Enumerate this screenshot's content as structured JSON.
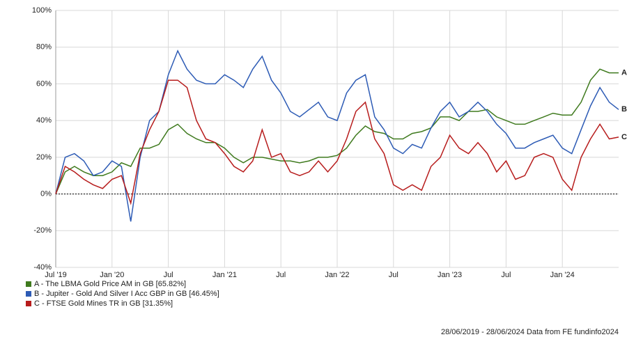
{
  "chart_data": {
    "type": "line",
    "x": [
      "2019-07",
      "2019-08",
      "2019-09",
      "2019-10",
      "2019-11",
      "2019-12",
      "2020-01",
      "2020-02",
      "2020-03",
      "2020-04",
      "2020-05",
      "2020-06",
      "2020-07",
      "2020-08",
      "2020-09",
      "2020-10",
      "2020-11",
      "2020-12",
      "2021-01",
      "2021-02",
      "2021-03",
      "2021-04",
      "2021-05",
      "2021-06",
      "2021-07",
      "2021-08",
      "2021-09",
      "2021-10",
      "2021-11",
      "2021-12",
      "2022-01",
      "2022-02",
      "2022-03",
      "2022-04",
      "2022-05",
      "2022-06",
      "2022-07",
      "2022-08",
      "2022-09",
      "2022-10",
      "2022-11",
      "2022-12",
      "2023-01",
      "2023-02",
      "2023-03",
      "2023-04",
      "2023-05",
      "2023-06",
      "2023-07",
      "2023-08",
      "2023-09",
      "2023-10",
      "2023-11",
      "2023-12",
      "2024-01",
      "2024-02",
      "2024-03",
      "2024-04",
      "2024-05",
      "2024-06",
      "2024-07"
    ],
    "series": [
      {
        "name": "A - The LBMA Gold Price AM in GB [65.82%]",
        "end_label": "A",
        "color": "#3f7a1e",
        "values": [
          0,
          12,
          15,
          12,
          10,
          10,
          12,
          17,
          15,
          25,
          25,
          27,
          35,
          38,
          33,
          30,
          28,
          28,
          25,
          20,
          17,
          20,
          20,
          19,
          18,
          18,
          17,
          18,
          20,
          20,
          21,
          25,
          32,
          37,
          34,
          33,
          30,
          30,
          33,
          34,
          36,
          42,
          42,
          40,
          45,
          45,
          46,
          42,
          40,
          38,
          38,
          40,
          42,
          44,
          43,
          43,
          50,
          62,
          68,
          66,
          66
        ]
      },
      {
        "name": "B - Jupiter - Gold And Silver I Acc GBP in GB [46.45%]",
        "end_label": "B",
        "color": "#2d5bb5",
        "values": [
          0,
          20,
          22,
          18,
          10,
          12,
          18,
          15,
          -15,
          20,
          40,
          45,
          65,
          78,
          68,
          62,
          60,
          60,
          65,
          62,
          58,
          68,
          75,
          62,
          55,
          45,
          42,
          46,
          50,
          42,
          40,
          55,
          62,
          65,
          42,
          35,
          25,
          22,
          27,
          25,
          36,
          45,
          50,
          42,
          45,
          50,
          45,
          38,
          33,
          25,
          25,
          28,
          30,
          32,
          25,
          22,
          35,
          48,
          58,
          50,
          46
        ]
      },
      {
        "name": "C - FTSE Gold Mines TR in GB [31.35%]",
        "end_label": "C",
        "color": "#b71c1c",
        "values": [
          0,
          15,
          12,
          8,
          5,
          3,
          8,
          10,
          -5,
          22,
          35,
          45,
          62,
          62,
          58,
          40,
          30,
          28,
          22,
          15,
          12,
          18,
          35,
          20,
          22,
          12,
          10,
          12,
          18,
          12,
          18,
          30,
          45,
          50,
          30,
          22,
          5,
          2,
          5,
          2,
          15,
          20,
          32,
          25,
          22,
          28,
          22,
          12,
          18,
          8,
          10,
          20,
          22,
          20,
          8,
          2,
          20,
          30,
          38,
          30,
          31
        ]
      }
    ],
    "ylim": [
      -40,
      100
    ],
    "yticks": [
      {
        "value": -40,
        "label": "-40%"
      },
      {
        "value": -20,
        "label": "-20%"
      },
      {
        "value": 0,
        "label": "0%"
      },
      {
        "value": 20,
        "label": "20%"
      },
      {
        "value": 40,
        "label": "40%"
      },
      {
        "value": 60,
        "label": "60%"
      },
      {
        "value": 80,
        "label": "80%"
      },
      {
        "value": 100,
        "label": "100%"
      }
    ],
    "xticks": [
      {
        "value": "2019-07",
        "label": "Jul '19"
      },
      {
        "value": "2020-01",
        "label": "Jan '20"
      },
      {
        "value": "2020-07",
        "label": "Jul"
      },
      {
        "value": "2021-01",
        "label": "Jan '21"
      },
      {
        "value": "2021-07",
        "label": "Jul"
      },
      {
        "value": "2022-01",
        "label": "Jan '22"
      },
      {
        "value": "2022-07",
        "label": "Jul"
      },
      {
        "value": "2023-01",
        "label": "Jan '23"
      },
      {
        "value": "2023-07",
        "label": "Jul"
      },
      {
        "value": "2024-01",
        "label": "Jan '24"
      }
    ],
    "grid": true,
    "footer": "28/06/2019 - 28/06/2024 Data from FE fundinfo2024"
  }
}
